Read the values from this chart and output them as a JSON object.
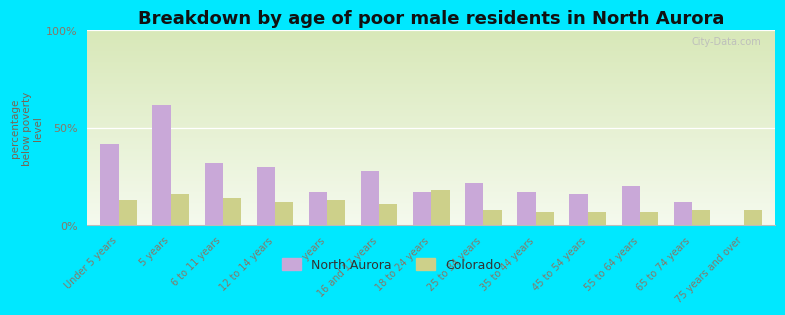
{
  "title": "Breakdown by age of poor male residents in North Aurora",
  "ylabel": "percentage\nbelow poverty\nlevel",
  "categories": [
    "Under 5 years",
    "5 years",
    "6 to 11 years",
    "12 to 14 years",
    "15 years",
    "16 and 17 years",
    "18 to 24 years",
    "25 to 34 years",
    "35 to 44 years",
    "45 to 54 years",
    "55 to 64 years",
    "65 to 74 years",
    "75 years and over"
  ],
  "north_aurora": [
    42,
    62,
    32,
    30,
    17,
    28,
    17,
    22,
    17,
    16,
    20,
    12,
    0
  ],
  "colorado": [
    13,
    16,
    14,
    12,
    13,
    11,
    18,
    8,
    7,
    7,
    7,
    8,
    8
  ],
  "north_aurora_color": "#c9a8d8",
  "colorado_color": "#cdd08a",
  "bg_top_color": "#d8e8b8",
  "bg_bottom_color": "#f5faee",
  "outer_bg": "#00e8ff",
  "ylim": [
    0,
    100
  ],
  "yticks": [
    0,
    50,
    100
  ],
  "ytick_labels": [
    "0%",
    "50%",
    "100%"
  ],
  "bar_width": 0.35,
  "title_fontsize": 13,
  "tick_label_color": "#887766",
  "ylabel_color": "#776655",
  "legend_labels": [
    "North Aurora",
    "Colorado"
  ],
  "watermark": "City-Data.com"
}
